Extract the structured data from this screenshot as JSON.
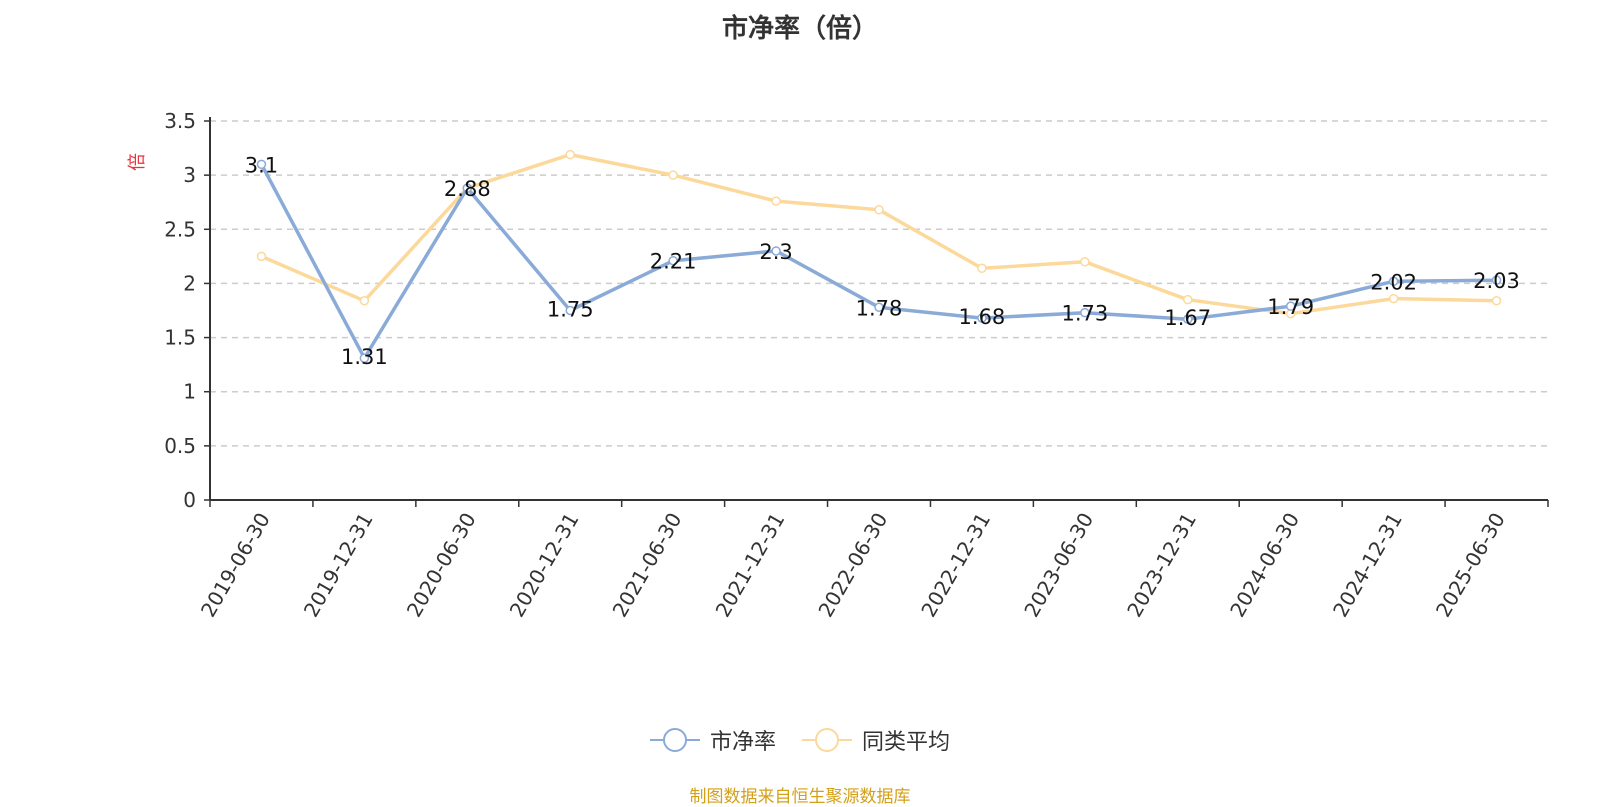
{
  "chart_data": {
    "type": "line",
    "title": "市净率（倍）",
    "ylabel": "倍",
    "ylim": [
      0,
      3.5
    ],
    "yticks": [
      "0",
      "0.5",
      "1",
      "1.5",
      "2",
      "2.5",
      "3",
      "3.5"
    ],
    "ytick_values": [
      0,
      0.5,
      1,
      1.5,
      2,
      2.5,
      3,
      3.5
    ],
    "categories": [
      "2019-06-30",
      "2019-12-31",
      "2020-06-30",
      "2020-12-31",
      "2021-06-30",
      "2021-12-31",
      "2022-06-30",
      "2022-12-31",
      "2023-06-30",
      "2023-12-31",
      "2024-06-30",
      "2024-12-31",
      "2025-06-30"
    ],
    "series": [
      {
        "name": "市净率",
        "color": "#8aaad8",
        "values": [
          3.1,
          1.31,
          2.88,
          1.75,
          2.21,
          2.3,
          1.78,
          1.68,
          1.73,
          1.67,
          1.79,
          2.02,
          2.03
        ],
        "labels": [
          "3.1",
          "1.31",
          "2.88",
          "1.75",
          "2.21",
          "2.3",
          "1.78",
          "1.68",
          "1.73",
          "1.67",
          "1.79",
          "2.02",
          "2.03"
        ]
      },
      {
        "name": "同类平均",
        "color": "#fcd99a",
        "values": [
          2.25,
          1.84,
          2.88,
          3.19,
          3.0,
          2.76,
          2.68,
          2.14,
          2.2,
          1.85,
          1.72,
          1.86,
          1.84
        ]
      }
    ],
    "grid": true,
    "legend_position": "bottom"
  },
  "footer": {
    "source": "制图数据来自恒生聚源数据库"
  },
  "colors": {
    "ylabel": "#e8323c",
    "source": "#d4a017"
  }
}
